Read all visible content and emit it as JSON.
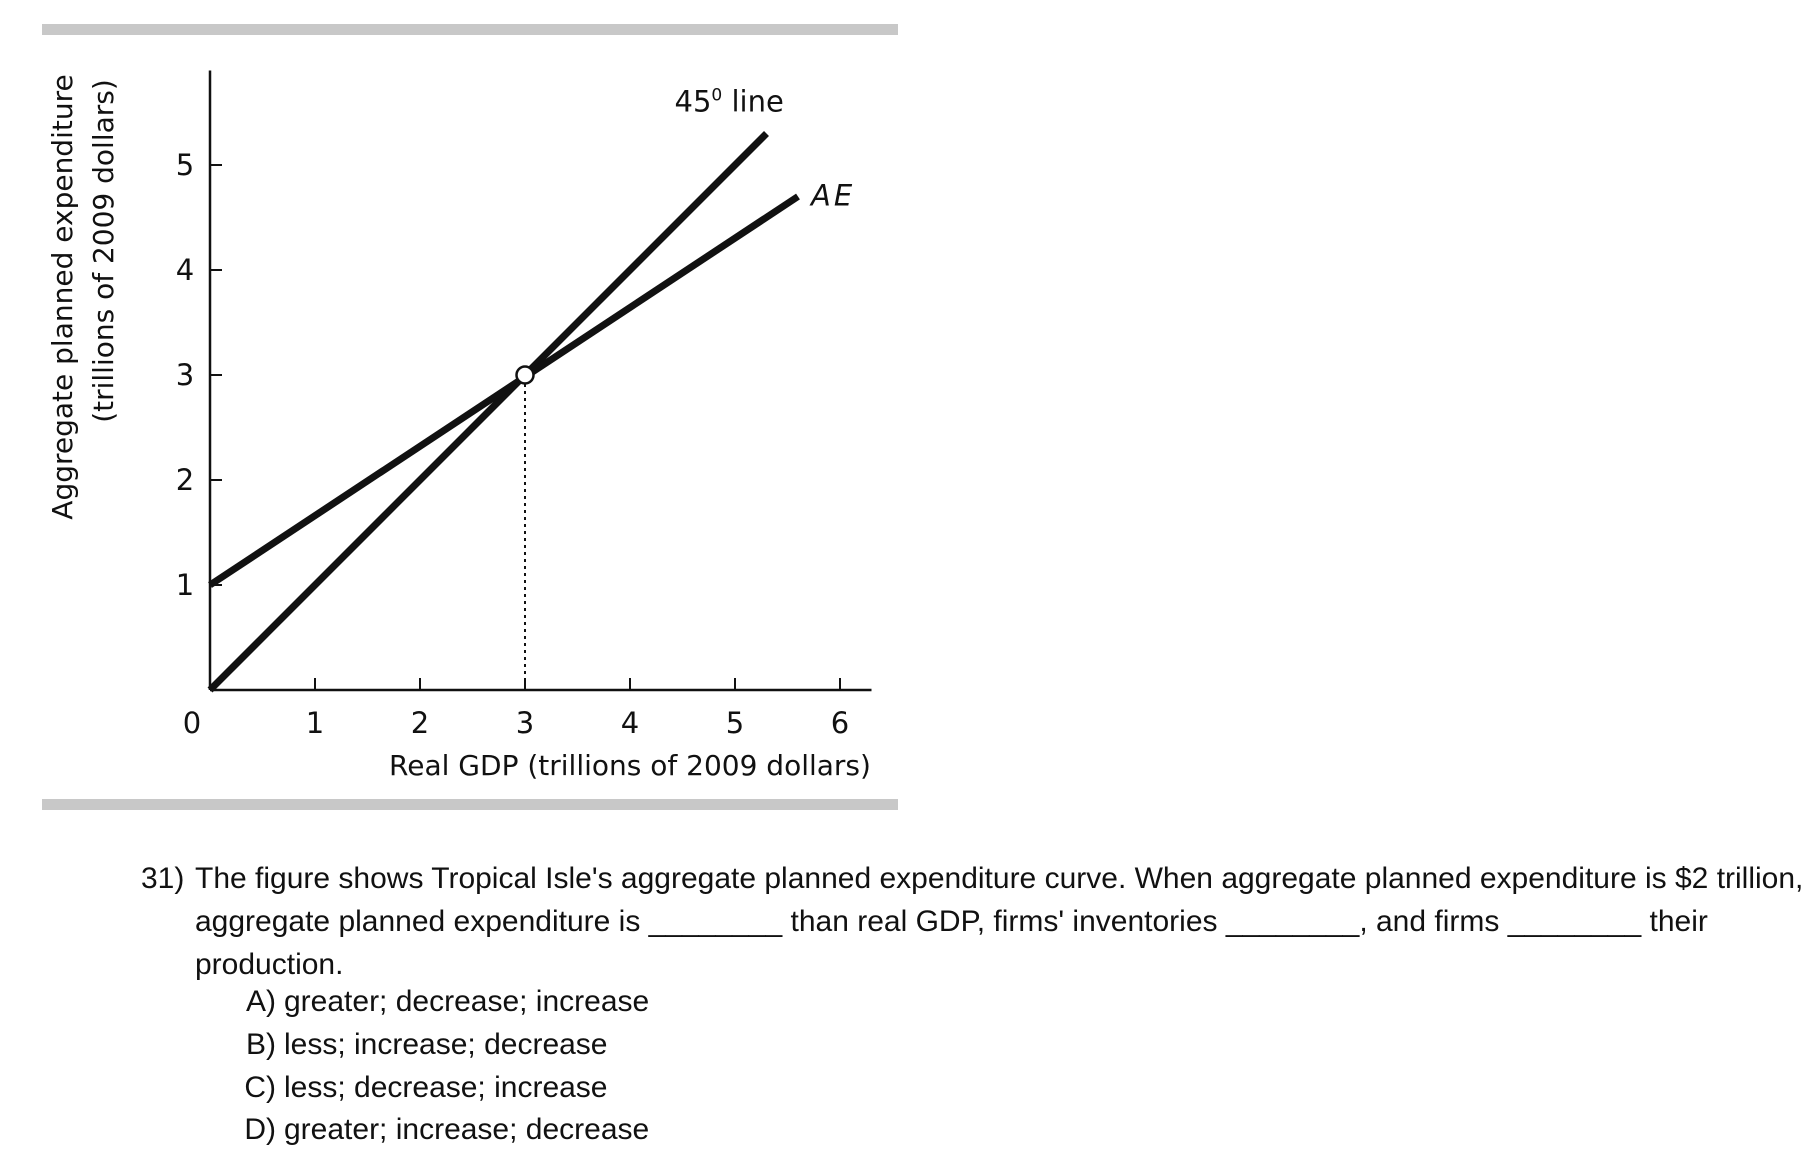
{
  "chart_data": {
    "type": "line",
    "xlabel": "Real GDP (trillions of 2009 dollars)",
    "ylabel_line1": "Aggregate planned expenditure",
    "ylabel_line2": "(trillions of 2009 dollars)",
    "xlim": [
      0,
      6.3
    ],
    "ylim": [
      0,
      5.9
    ],
    "x_ticks": [
      0,
      1,
      2,
      3,
      4,
      5,
      6
    ],
    "y_ticks": [
      1,
      2,
      3,
      4,
      5
    ],
    "x_tick_labels": [
      "0",
      "1",
      "2",
      "3",
      "4",
      "5",
      "6"
    ],
    "y_tick_labels": [
      "1",
      "2",
      "3",
      "4",
      "5"
    ],
    "series": [
      {
        "name": "45° line",
        "label_main": "45",
        "label_sup": "0",
        "label_rest": " line",
        "x": [
          0,
          5.3
        ],
        "y": [
          0,
          5.3
        ]
      },
      {
        "name": "AE",
        "label_main": "AE",
        "x": [
          0,
          5.6
        ],
        "y": [
          1,
          4.7
        ]
      }
    ],
    "equilibrium": {
      "x": 3,
      "y": 3
    },
    "grid": false
  },
  "question": {
    "number": "31)",
    "text": "The figure shows Tropical Isle's aggregate planned expenditure curve. When aggregate planned expenditure is $2 trillion, aggregate planned expenditure is ________ than real GDP, firms' inventories ________, and firms ________ their production.",
    "options": [
      {
        "letter": "A)",
        "text": "greater; decrease; increase"
      },
      {
        "letter": "B)",
        "text": "less; increase; decrease"
      },
      {
        "letter": "C)",
        "text": "less; decrease; increase"
      },
      {
        "letter": "D)",
        "text": "greater; increase; decrease"
      }
    ]
  }
}
